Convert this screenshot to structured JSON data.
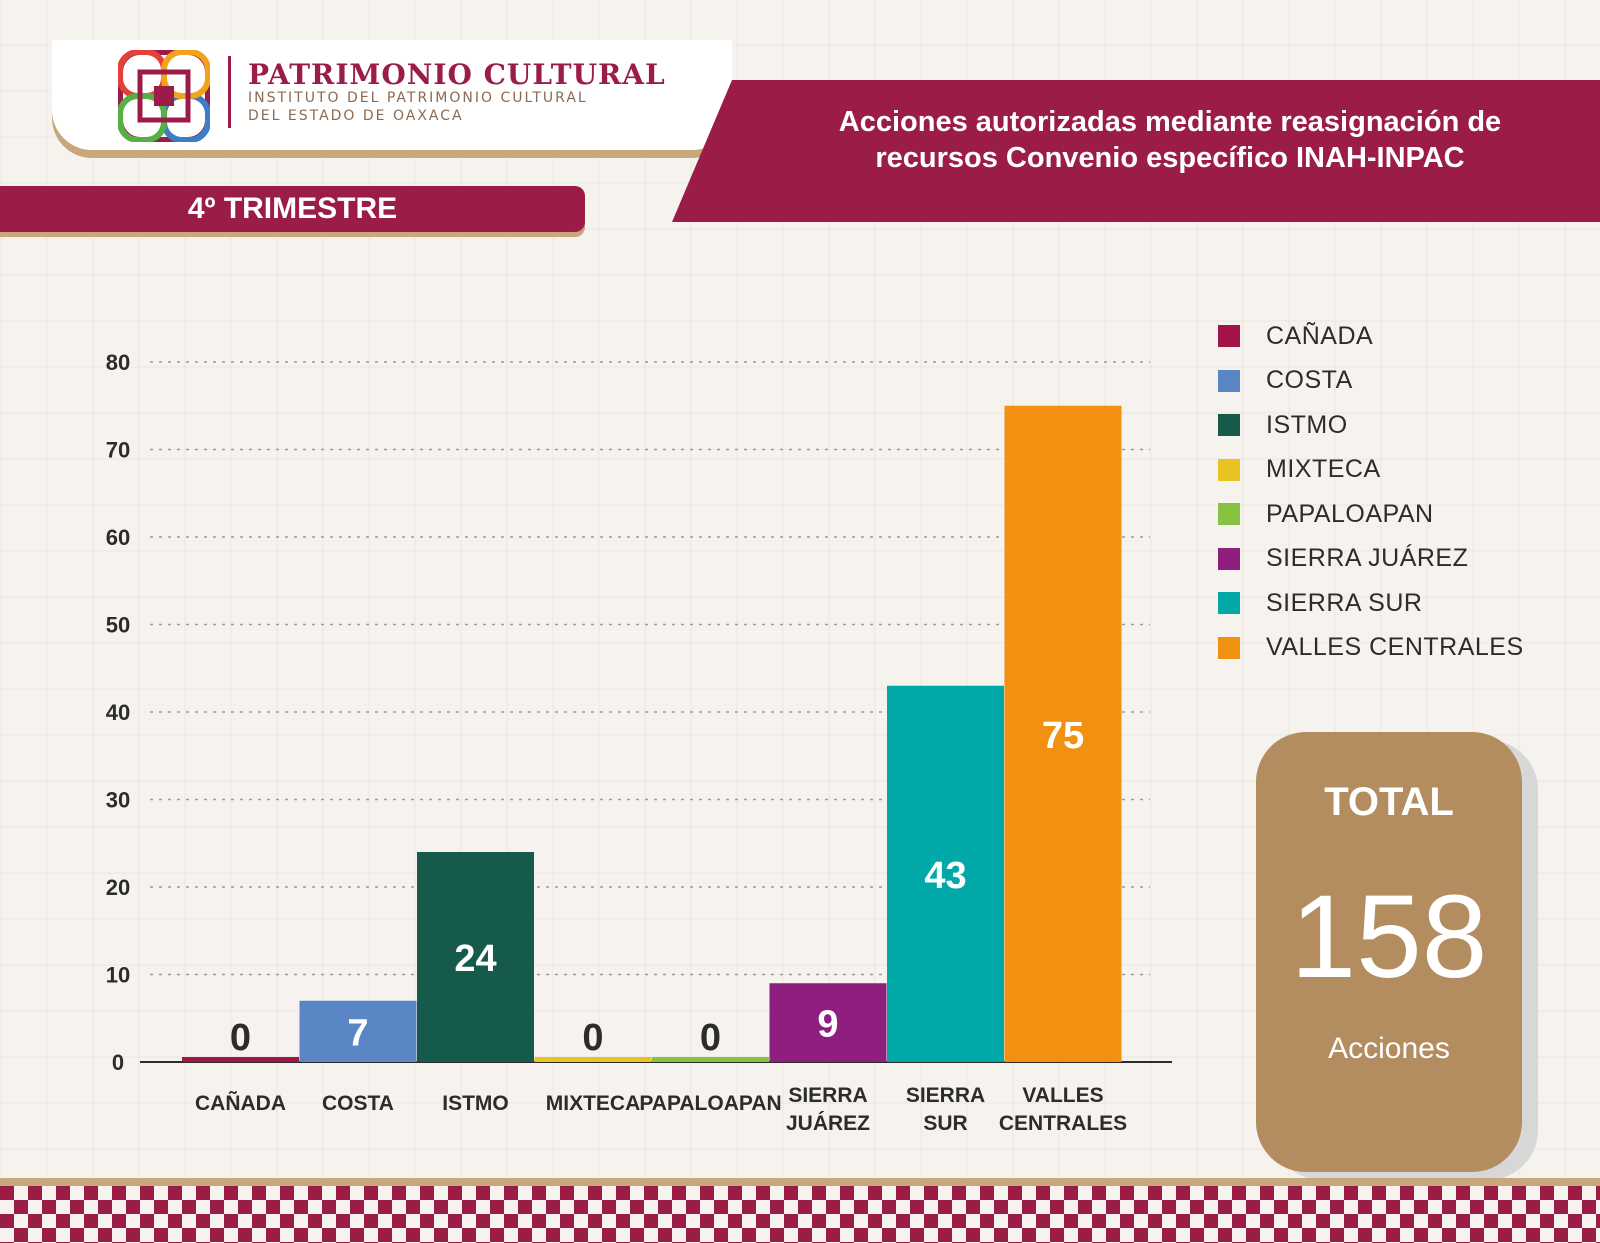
{
  "header": {
    "brand_title": "PATRIMONIO CULTURAL",
    "brand_sub1": "INSTITUTO DEL PATRIMONIO CULTURAL",
    "brand_sub2": "DEL ESTADO DE OAXACA",
    "title_line1": "Acciones autorizadas mediante reasignación de",
    "title_line2": "recursos Convenio específico INAH-INPAC",
    "trimestre": "4º TRIMESTRE"
  },
  "total": {
    "label": "TOTAL",
    "value": "158",
    "unit": "Acciones"
  },
  "chart_data": {
    "type": "bar",
    "categories": [
      "CAÑADA",
      "COSTA",
      "ISTMO",
      "MIXTECA",
      "PAPALOAPAN",
      "SIERRA JUÁREZ",
      "SIERRA SUR",
      "VALLES CENTRALES"
    ],
    "category_lines": [
      [
        "CAÑADA"
      ],
      [
        "COSTA"
      ],
      [
        "ISTMO"
      ],
      [
        "MIXTECA"
      ],
      [
        "PAPALOAPAN"
      ],
      [
        "SIERRA",
        "JUÁREZ"
      ],
      [
        "SIERRA",
        "SUR"
      ],
      [
        "VALLES",
        "CENTRALES"
      ]
    ],
    "values": [
      0,
      7,
      24,
      0,
      0,
      9,
      43,
      75
    ],
    "colors": [
      "#a3154a",
      "#5b86c6",
      "#155a4a",
      "#e9c223",
      "#88c241",
      "#8e1f7f",
      "#00a9a8",
      "#f29111"
    ],
    "yticks": [
      0,
      10,
      20,
      30,
      40,
      50,
      60,
      70,
      80
    ],
    "ylim": [
      0,
      80
    ],
    "grid": true,
    "legend_position": "right",
    "title": "",
    "xlabel": "",
    "ylabel": ""
  }
}
